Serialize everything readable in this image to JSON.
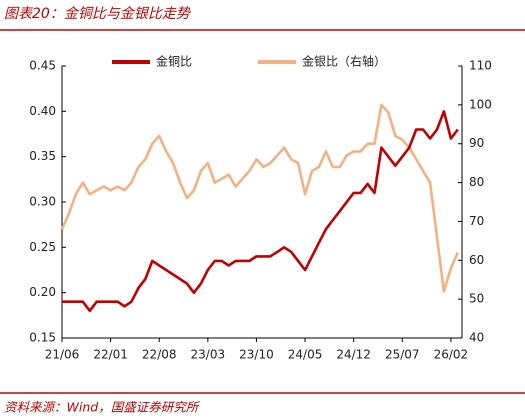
{
  "chart_data": {
    "type": "line",
    "title": "图表20：金铜比与金银比走势",
    "source": "资料来源：Wind，国盛证券研究所",
    "categories": [
      "21/06",
      null,
      null,
      null,
      null,
      null,
      null,
      "22/01",
      null,
      null,
      null,
      null,
      null,
      null,
      "22/08",
      null,
      null,
      null,
      null,
      null,
      null,
      "23/03",
      null,
      null,
      null,
      null,
      null,
      null,
      "23/10",
      null,
      null,
      null,
      null,
      null,
      null,
      "24/05",
      null,
      null,
      null,
      null,
      null,
      null,
      "24/12",
      null,
      null,
      null,
      null,
      null,
      null,
      "25/07",
      null,
      null,
      null,
      null,
      null,
      null,
      "26/02",
      null
    ],
    "series": [
      {
        "name": "金铜比",
        "color": "#c00000",
        "axis": "y",
        "values": [
          0.19,
          0.19,
          0.19,
          0.19,
          0.18,
          0.19,
          0.19,
          0.19,
          0.19,
          0.185,
          0.19,
          0.205,
          0.215,
          0.235,
          0.23,
          0.225,
          0.22,
          0.215,
          0.21,
          0.2,
          0.21,
          0.225,
          0.235,
          0.235,
          0.23,
          0.235,
          0.235,
          0.235,
          0.24,
          0.24,
          0.24,
          0.245,
          0.25,
          0.245,
          0.235,
          0.225,
          0.24,
          0.255,
          0.27,
          0.28,
          0.29,
          0.3,
          0.31,
          0.31,
          0.32,
          0.31,
          0.36,
          0.35,
          0.34,
          0.35,
          0.36,
          0.38,
          0.38,
          0.37,
          0.38,
          0.4,
          0.37,
          0.38
        ]
      },
      {
        "name": "金银比（右轴）",
        "color": "#f4b183",
        "axis": "y2",
        "values": [
          68,
          72,
          77,
          80,
          77,
          78,
          79,
          78,
          79,
          78,
          80,
          84,
          86,
          90,
          92,
          88,
          85,
          80,
          76,
          78,
          83,
          85,
          80,
          81,
          82,
          79,
          81,
          83,
          86,
          84,
          85,
          87,
          89,
          86,
          85,
          77,
          83,
          84,
          88,
          84,
          84,
          87,
          88,
          88,
          90,
          90,
          100,
          98,
          92,
          91,
          89,
          86,
          83,
          80,
          66,
          52,
          58,
          62
        ]
      }
    ],
    "ylim": [
      0.15,
      0.45
    ],
    "yticks": [
      {
        "value": 0.15,
        "label": "0.15"
      },
      {
        "value": 0.2,
        "label": "0.20"
      },
      {
        "value": 0.25,
        "label": "0.25"
      },
      {
        "value": 0.3,
        "label": "0.30"
      },
      {
        "value": 0.35,
        "label": "0.35"
      },
      {
        "value": 0.4,
        "label": "0.40"
      },
      {
        "value": 0.45,
        "label": "0.45"
      }
    ],
    "y2lim": [
      40,
      110
    ],
    "y2ticks": [
      40,
      50,
      60,
      70,
      80,
      90,
      100,
      110
    ],
    "legend": "top"
  }
}
